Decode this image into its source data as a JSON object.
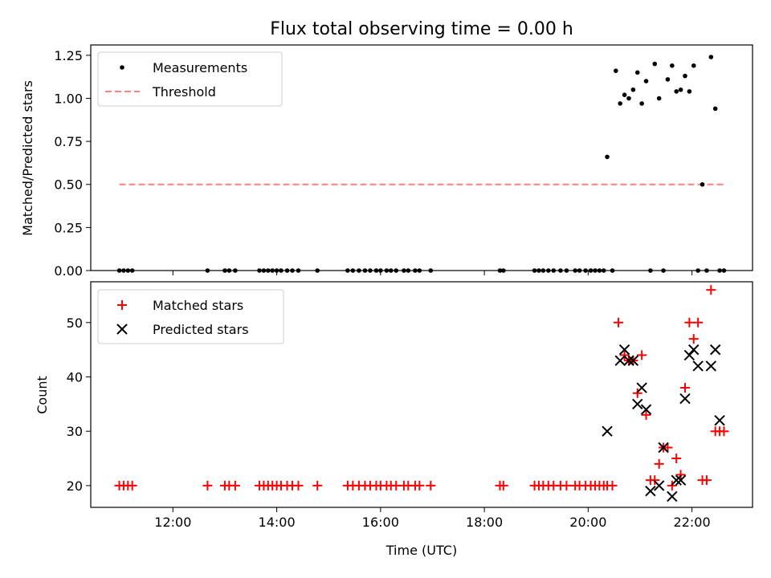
{
  "chart_data": [
    {
      "type": "scatter",
      "title": "Flux total observing time = 0.00 h",
      "xlabel": "",
      "ylabel": "Matched/Predicted stars",
      "xlim": [
        "10:25",
        "23:10"
      ],
      "ylim": [
        0,
        1.31
      ],
      "yticks": [
        "0.00",
        "0.25",
        "0.50",
        "0.75",
        "1.00",
        "1.25"
      ],
      "legend": {
        "placement": "top-left",
        "entries": [
          "Measurements",
          "Threshold"
        ]
      },
      "series": [
        {
          "name": "Measurements",
          "x": [
            "10:58",
            "11:03",
            "11:08",
            "11:13",
            "12:40",
            "13:00",
            "13:05",
            "13:12",
            "13:40",
            "13:45",
            "13:50",
            "13:55",
            "14:00",
            "14:05",
            "14:12",
            "14:18",
            "14:25",
            "14:47",
            "15:22",
            "15:28",
            "15:35",
            "15:42",
            "15:48",
            "15:55",
            "16:00",
            "16:07",
            "16:12",
            "16:18",
            "16:27",
            "16:32",
            "16:40",
            "16:45",
            "16:58",
            "18:18",
            "18:22",
            "18:58",
            "19:03",
            "19:08",
            "19:14",
            "19:20",
            "19:28",
            "19:35",
            "19:45",
            "19:50",
            "19:57",
            "20:03",
            "20:08",
            "20:13",
            "20:18",
            "20:22",
            "20:28",
            "20:32",
            "20:37",
            "20:42",
            "20:47",
            "20:52",
            "20:57",
            "21:02",
            "21:07",
            "21:12",
            "21:17",
            "21:22",
            "21:27",
            "21:32",
            "21:37",
            "21:42",
            "21:47",
            "21:52",
            "21:57",
            "22:02",
            "22:07",
            "22:12",
            "22:17",
            "22:22",
            "22:27",
            "22:32",
            "22:37"
          ],
          "y": [
            0,
            0,
            0,
            0,
            0,
            0,
            0,
            0,
            0,
            0,
            0,
            0,
            0,
            0,
            0,
            0,
            0,
            0,
            0,
            0,
            0,
            0,
            0,
            0,
            0,
            0,
            0,
            0,
            0,
            0,
            0,
            0,
            0,
            0,
            0,
            0,
            0,
            0,
            0,
            0,
            0,
            0,
            0,
            0,
            0,
            0,
            0,
            0,
            0,
            0.66,
            0,
            1.16,
            0.97,
            1.02,
            1.0,
            1.05,
            1.15,
            0.97,
            1.1,
            0,
            1.2,
            1.0,
            0,
            1.11,
            1.19,
            1.04,
            1.05,
            1.13,
            1.04,
            1.19,
            0,
            0.5,
            0,
            1.24,
            0.94,
            0,
            0
          ],
          "marker": "dot",
          "color": "#000000"
        },
        {
          "name": "Threshold",
          "x": [
            "10:58",
            "22:40"
          ],
          "y": [
            0.5,
            0.5
          ],
          "style": "dashed",
          "color": "#ff8080"
        }
      ]
    },
    {
      "type": "scatter",
      "title": "",
      "xlabel": "Time (UTC)",
      "ylabel": "Count",
      "xlim": [
        "10:25",
        "23:10"
      ],
      "ylim": [
        16,
        57.5
      ],
      "xticks": [
        "12:00",
        "14:00",
        "16:00",
        "18:00",
        "20:00",
        "22:00"
      ],
      "yticks": [
        "20",
        "30",
        "40",
        "50"
      ],
      "legend": {
        "placement": "top-left",
        "entries": [
          "Matched stars",
          "Predicted stars"
        ]
      },
      "series": [
        {
          "name": "Matched stars",
          "marker": "plus",
          "color": "#ff0000",
          "x": [
            "10:58",
            "11:03",
            "11:08",
            "11:13",
            "12:40",
            "13:00",
            "13:05",
            "13:12",
            "13:40",
            "13:45",
            "13:50",
            "13:55",
            "14:00",
            "14:05",
            "14:12",
            "14:18",
            "14:25",
            "14:47",
            "15:22",
            "15:28",
            "15:35",
            "15:42",
            "15:48",
            "15:55",
            "16:00",
            "16:07",
            "16:12",
            "16:18",
            "16:27",
            "16:32",
            "16:40",
            "16:45",
            "16:58",
            "18:18",
            "18:22",
            "18:58",
            "19:03",
            "19:08",
            "19:14",
            "19:20",
            "19:28",
            "19:35",
            "19:45",
            "19:50",
            "19:57",
            "20:03",
            "20:08",
            "20:13",
            "20:18",
            "20:22",
            "20:28",
            "20:35",
            "20:42",
            "20:47",
            "20:52",
            "20:57",
            "21:02",
            "21:07",
            "21:12",
            "21:17",
            "21:22",
            "21:27",
            "21:32",
            "21:37",
            "21:42",
            "21:47",
            "21:52",
            "21:57",
            "22:02",
            "22:07",
            "22:12",
            "22:17",
            "22:22",
            "22:27",
            "22:32",
            "22:37"
          ],
          "y": [
            20,
            20,
            20,
            20,
            20,
            20,
            20,
            20,
            20,
            20,
            20,
            20,
            20,
            20,
            20,
            20,
            20,
            20,
            20,
            20,
            20,
            20,
            20,
            20,
            20,
            20,
            20,
            20,
            20,
            20,
            20,
            20,
            20,
            20,
            20,
            20,
            20,
            20,
            20,
            20,
            20,
            20,
            20,
            20,
            20,
            20,
            20,
            20,
            20,
            20,
            20,
            50,
            44,
            43,
            43,
            37,
            44,
            33,
            21,
            21,
            24,
            27,
            27,
            20,
            25,
            22,
            38,
            50,
            47,
            50,
            21,
            21,
            56,
            30,
            30,
            30
          ]
        },
        {
          "name": "Predicted stars",
          "marker": "x",
          "color": "#000000",
          "x": [
            "20:22",
            "20:37",
            "20:42",
            "20:47",
            "20:52",
            "20:57",
            "21:02",
            "21:07",
            "21:12",
            "21:22",
            "21:27",
            "21:37",
            "21:42",
            "21:47",
            "21:52",
            "21:57",
            "22:02",
            "22:07",
            "22:22",
            "22:27",
            "22:32"
          ],
          "y": [
            30,
            43,
            45,
            43,
            43,
            35,
            38,
            34,
            19,
            20,
            27,
            18,
            21,
            21,
            36,
            44,
            45,
            42,
            42,
            45,
            32
          ]
        }
      ]
    }
  ]
}
